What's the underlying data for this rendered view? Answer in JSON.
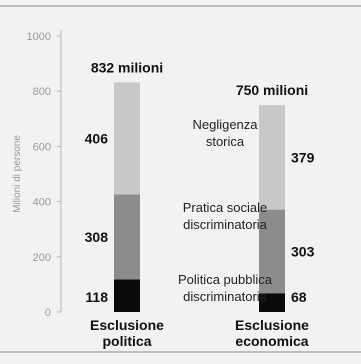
{
  "chart_data": {
    "type": "bar",
    "stacked": true,
    "categories": [
      "Esclusione\npolitica",
      "Esclusione\neconomica"
    ],
    "series": [
      {
        "name": "Politica pubblica\ndiscriminatoria",
        "values": [
          118,
          68
        ],
        "color": "#0a0a0a"
      },
      {
        "name": "Pratica sociale\ndiscriminatoria",
        "values": [
          308,
          303
        ],
        "color": "#8c8c8c"
      },
      {
        "name": "Negligenza\nstorica",
        "values": [
          406,
          379
        ],
        "color": "#c8c8c8"
      }
    ],
    "totals": [
      "832 milioni",
      "750 milioni"
    ],
    "ylabel": "Milioni di persone",
    "ylim": [
      0,
      1000
    ],
    "yticks": [
      0,
      200,
      400,
      600,
      800,
      1000
    ],
    "grid": false,
    "legend": "inline, between bars"
  }
}
